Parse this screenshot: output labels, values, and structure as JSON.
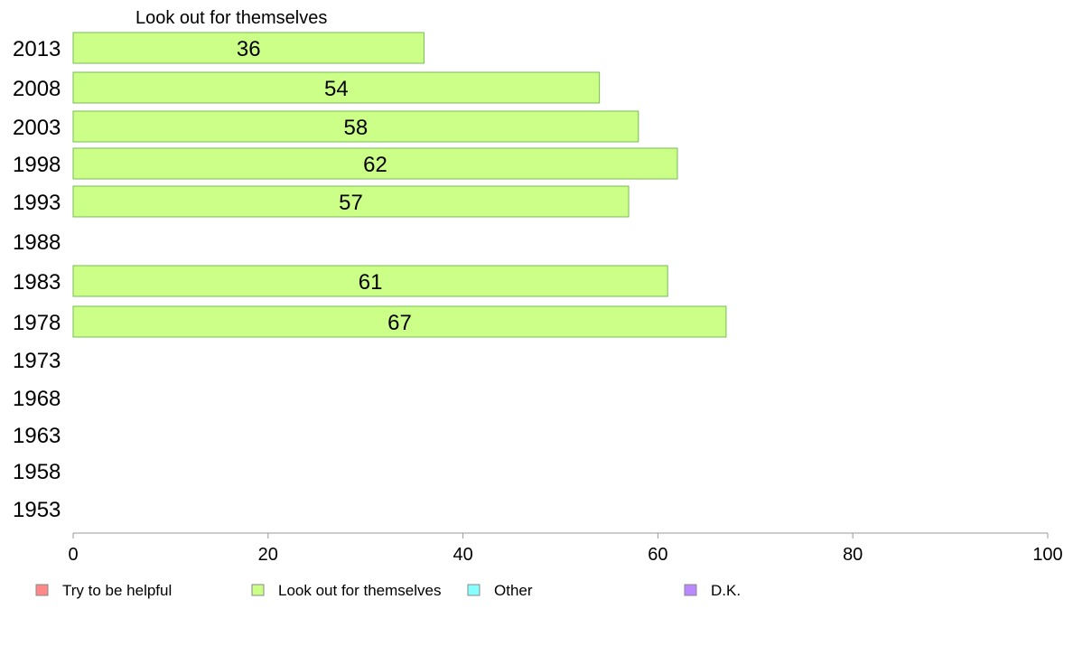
{
  "chart_data": {
    "type": "bar",
    "orientation": "horizontal",
    "series_title": "Look out for themselves",
    "categories": [
      "2013",
      "2008",
      "2003",
      "1998",
      "1993",
      "1988",
      "1983",
      "1978",
      "1973",
      "1968",
      "1963",
      "1958",
      "1953"
    ],
    "series": [
      {
        "name": "Look out for themselves",
        "color": "#ccff88",
        "values": [
          36,
          54,
          58,
          62,
          57,
          null,
          61,
          67,
          null,
          null,
          null,
          null,
          null
        ]
      }
    ],
    "xlim": [
      0,
      100
    ],
    "xticks": [
      0,
      20,
      40,
      60,
      80,
      100
    ],
    "grid": false,
    "legend": {
      "placement": "bottom",
      "items": [
        {
          "label": "Try to be helpful",
          "color": "#ff8888"
        },
        {
          "label": "Look out for themselves",
          "color": "#ccff88"
        },
        {
          "label": "Other",
          "color": "#88ffff"
        },
        {
          "label": "D.K.",
          "color": "#bb88ff"
        }
      ]
    },
    "colors": {
      "bar_stroke": "#77bb55",
      "legend_stroke": "#888888",
      "axis": "#999999"
    }
  }
}
